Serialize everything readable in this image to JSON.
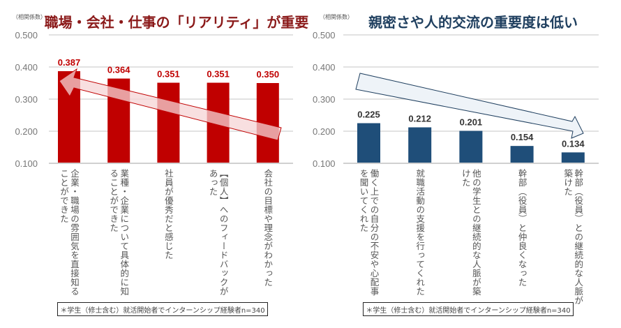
{
  "chart_data": [
    {
      "type": "bar",
      "title": "職場・会社・仕事の「リアリティ」が重要",
      "ylabel": "（相関係数）",
      "ylim": [
        0.1,
        0.5
      ],
      "yticks": [
        "0.500",
        "0.400",
        "0.300",
        "0.200",
        "0.100"
      ],
      "ytick_values": [
        0.5,
        0.4,
        0.3,
        0.2,
        0.1
      ],
      "grid": true,
      "categories": [
        "企業・職場の雰囲気を直接知る\nことができた",
        "業種・企業について具体的に知\nることができた",
        "社員が優秀だと感じた",
        "【個人】へのフィードバックが\nあった",
        "会社の目標や理念がわかった"
      ],
      "values": [
        0.387,
        0.364,
        0.351,
        0.351,
        0.35
      ],
      "data_labels": [
        "0.387",
        "0.364",
        "0.351",
        "0.351",
        "0.350"
      ],
      "bar_color": "#c00000",
      "label_color": "#c00000",
      "title_color": "#8b1a1a",
      "annotation": "arrow pointing up-left toward the highest bar",
      "note": "＊学生（修士含む）就活開始者でインターンシップ経験者n=340"
    },
    {
      "type": "bar",
      "title": "親密さや人的交流の重要度は低い",
      "ylabel": "（相関係数）",
      "ylim": [
        0.1,
        0.5
      ],
      "yticks": [
        "0.500",
        "0.400",
        "0.300",
        "0.200",
        "0.100"
      ],
      "ytick_values": [
        0.5,
        0.4,
        0.3,
        0.2,
        0.1
      ],
      "grid": true,
      "categories": [
        "働く上での自分の不安や心配事\nを聞いてくれた",
        "就職活動の支援を行ってくれた",
        "他の学生との継続的な人脈が築\nけた",
        "幹部（役員）と仲良くなった",
        "幹部（役員）との継続的な人脈が\n築けた"
      ],
      "values": [
        0.225,
        0.212,
        0.201,
        0.154,
        0.134
      ],
      "data_labels": [
        "0.225",
        "0.212",
        "0.201",
        "0.154",
        "0.134"
      ],
      "bar_color": "#1f4e79",
      "label_color": "#333333",
      "title_color": "#1f3f5f",
      "annotation": "arrow pointing down-right toward the lowest bar",
      "note": "＊学生（修士含む）就活開始者でインターンシップ経験者n=340"
    }
  ]
}
